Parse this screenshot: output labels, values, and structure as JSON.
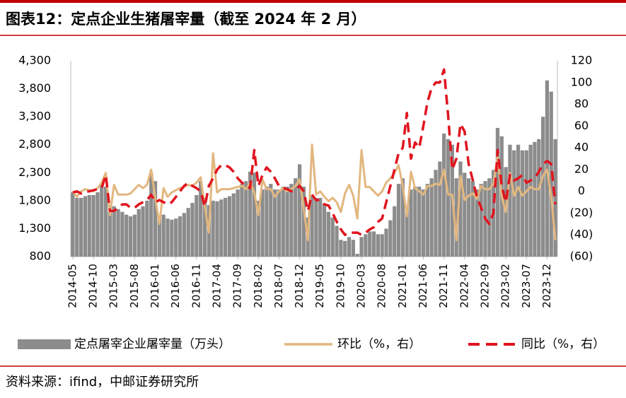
{
  "chart_data": {
    "type": "bar_line_dual",
    "title": "图表12：定点企业生猪屠宰量（截至 2024 年 2 月）",
    "source": "资料来源：ifind，中邮证券研究所",
    "categories": [
      "2014-05",
      null,
      null,
      null,
      null,
      "2014-10",
      null,
      null,
      null,
      null,
      "2015-03",
      null,
      null,
      null,
      null,
      "2015-08",
      null,
      null,
      null,
      null,
      "2016-01",
      null,
      null,
      null,
      null,
      "2016-06",
      null,
      null,
      null,
      null,
      "2016-11",
      null,
      null,
      null,
      null,
      "2017-04",
      null,
      null,
      null,
      null,
      "2017-09",
      null,
      null,
      null,
      null,
      "2018-02",
      null,
      null,
      null,
      null,
      "2018-07",
      null,
      null,
      null,
      null,
      "2018-12",
      null,
      null,
      null,
      null,
      "2019-05",
      null,
      null,
      null,
      null,
      "2019-10",
      null,
      null,
      null,
      null,
      "2020-03",
      null,
      null,
      null,
      null,
      "2020-08",
      null,
      null,
      null,
      null,
      "2021-01",
      null,
      null,
      null,
      null,
      "2021-06",
      null,
      null,
      null,
      null,
      "2021-11",
      null,
      null,
      null,
      null,
      "2022-04",
      null,
      null,
      null,
      null,
      "2022-09",
      null,
      null,
      null,
      null,
      "2023-02",
      null,
      null,
      null,
      null,
      "2023-07",
      null,
      null,
      null,
      null,
      "2023-12",
      null,
      null
    ],
    "series": [
      {
        "name": "定点屠宰企业屠宰量（万头）",
        "color": "#8c8c8c",
        "kind": "bar",
        "axis": "y",
        "values": [
          1950,
          1850,
          1850,
          1880,
          1900,
          1900,
          1950,
          2100,
          2050,
          1600,
          1700,
          1650,
          1600,
          1550,
          1520,
          1550,
          1650,
          1700,
          1800,
          2300,
          2150,
          1500,
          1550,
          1480,
          1460,
          1480,
          1520,
          1580,
          1670,
          1760,
          1900,
          2150,
          1850,
          1720,
          1800,
          1790,
          1820,
          1850,
          1880,
          1930,
          2000,
          2100,
          2150,
          2320,
          2300,
          1800,
          2000,
          2050,
          2100,
          2000,
          2000,
          2050,
          2050,
          2100,
          2200,
          2450,
          2050,
          1500,
          1900,
          1850,
          1850,
          1750,
          1600,
          1500,
          1350,
          1100,
          1080,
          1150,
          1100,
          850,
          1150,
          1200,
          1250,
          1250,
          1200,
          1200,
          1300,
          1450,
          1700,
          2100,
          2200,
          1700,
          2000,
          2050,
          2050,
          2000,
          2100,
          2200,
          2350,
          2500,
          3000,
          2900,
          2800,
          2200,
          2500,
          2300,
          2200,
          2150,
          2000,
          2100,
          2150,
          2200,
          2350,
          3100,
          2950,
          2400,
          2800,
          2700,
          2800,
          2700,
          2700,
          2800,
          2850,
          2900,
          3300,
          3950,
          3750,
          2900
        ]
      },
      {
        "name": "环比（%，右）",
        "color": "#e2b77f",
        "kind": "line",
        "axis": "y2",
        "values": [
          0,
          -5,
          0,
          2,
          1,
          0,
          3,
          8,
          17,
          -22,
          6,
          -3,
          -3,
          -3,
          -2,
          2,
          6,
          3,
          6,
          20,
          -6,
          -30,
          3,
          -5,
          -1,
          1,
          3,
          4,
          6,
          5,
          8,
          13,
          -14,
          -38,
          35,
          -1,
          2,
          2,
          2,
          3,
          4,
          5,
          2,
          8,
          -1,
          -22,
          11,
          2,
          2,
          -5,
          0,
          3,
          0,
          2,
          5,
          11,
          -16,
          -45,
          43,
          -3,
          0,
          -5,
          -9,
          -6,
          -10,
          -19,
          -2,
          6,
          -4,
          -25,
          38,
          4,
          4,
          0,
          -4,
          0,
          8,
          12,
          17,
          24,
          5,
          -23,
          18,
          3,
          0,
          -3,
          5,
          5,
          7,
          6,
          20,
          -3,
          -3,
          -45,
          14,
          -8,
          -4,
          -2,
          -7,
          5,
          2,
          2,
          7,
          32,
          -5,
          -19,
          17,
          -4,
          4,
          -4,
          0,
          4,
          2,
          2,
          14,
          20,
          -5,
          -45
        ]
      },
      {
        "name": "同比（%，右）",
        "color": "#e0141e",
        "kind": "dashed",
        "axis": "y2",
        "values": [
          -1,
          0,
          -2,
          0,
          0,
          1,
          2,
          3,
          15,
          -18,
          -18,
          -15,
          -12,
          -12,
          -15,
          -15,
          -12,
          -10,
          -8,
          -3,
          -10,
          -8,
          -10,
          -12,
          -10,
          -5,
          0,
          5,
          8,
          5,
          3,
          0,
          -14,
          5,
          12,
          20,
          24,
          24,
          22,
          18,
          12,
          8,
          5,
          3,
          38,
          5,
          15,
          22,
          18,
          12,
          5,
          3,
          2,
          0,
          2,
          5,
          0,
          -18,
          -3,
          -8,
          -8,
          -12,
          -13,
          -20,
          -28,
          -35,
          -40,
          -38,
          -38,
          -38,
          -40,
          -38,
          -35,
          -33,
          -28,
          -25,
          -10,
          5,
          20,
          35,
          40,
          72,
          30,
          45,
          40,
          60,
          82,
          95,
          100,
          100,
          112,
          70,
          20,
          30,
          62,
          55,
          25,
          10,
          -5,
          -15,
          -25,
          -30,
          -20,
          38,
          5,
          -10,
          15,
          10,
          12,
          15,
          8,
          10,
          12,
          18,
          25,
          28,
          25,
          -12
        ]
      }
    ],
    "ylim": [
      800,
      4300
    ],
    "yticks": [
      800,
      {
        "value": 1300,
        "label": "1,300"
      },
      {
        "value": 1800,
        "label": "1,800"
      },
      {
        "value": 2300,
        "label": "2,300"
      },
      {
        "value": 2800,
        "label": "2,800"
      },
      {
        "value": 3300,
        "label": "3,300"
      },
      {
        "value": 3800,
        "label": "3,800"
      },
      {
        "value": 4300,
        "label": "4,300"
      }
    ],
    "y2lim": [
      -60,
      120
    ],
    "y2ticks": [
      {
        "value": -60,
        "label": "(60)"
      },
      {
        "value": -40,
        "label": "(40)"
      },
      {
        "value": -20,
        "label": "(20)"
      },
      0,
      20,
      40,
      60,
      80,
      100,
      120
    ],
    "negative_tick_color": "#e0141e"
  }
}
